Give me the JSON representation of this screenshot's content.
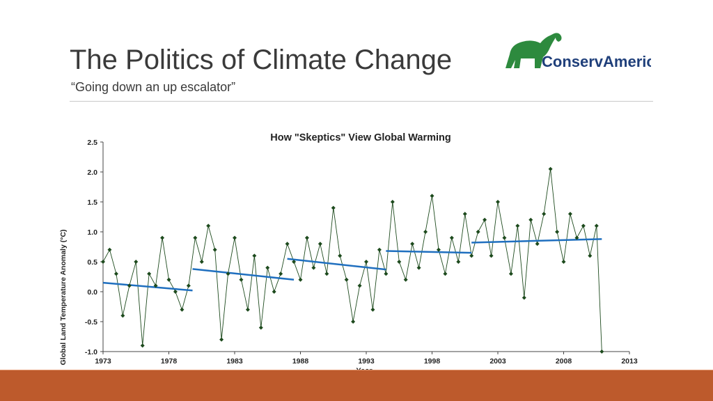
{
  "slide": {
    "title": "The Politics of Climate Change",
    "subtitle": "“Going down an up escalator”",
    "logo_text": "ConservAmerica"
  },
  "colors": {
    "accent_band": "#bd5a2c",
    "data_series": "#1d4a1d",
    "trend_lines": "#1f6fbf",
    "logo_green": "#2d8a3e",
    "logo_blue": "#1f3f7a"
  },
  "chart_data": {
    "type": "scatter",
    "title": "How \"Skeptics\" View Global Warming",
    "xlabel": "Year",
    "ylabel": "Global Land Temperature Anomaly (°C)",
    "xlim": [
      1973,
      2013
    ],
    "ylim": [
      -1.0,
      2.5
    ],
    "x_ticks": [
      "1973",
      "1978",
      "1983",
      "1988",
      "1993",
      "1998",
      "2003",
      "2008",
      "2013"
    ],
    "y_ticks": [
      "2.5",
      "2.0",
      "1.5",
      "1.0",
      "0.5",
      "0.0",
      "-0.5",
      "-1.0"
    ],
    "grid": false,
    "series": [
      {
        "points": [
          [
            1973.0,
            0.5
          ],
          [
            1973.5,
            0.7
          ],
          [
            1974.0,
            0.3
          ],
          [
            1974.5,
            -0.4
          ],
          [
            1975.0,
            0.1
          ],
          [
            1975.5,
            0.5
          ],
          [
            1976.0,
            -0.9
          ],
          [
            1976.5,
            0.3
          ],
          [
            1977.0,
            0.1
          ],
          [
            1977.5,
            0.9
          ],
          [
            1978.0,
            0.2
          ],
          [
            1978.5,
            0.0
          ],
          [
            1979.0,
            -0.3
          ],
          [
            1979.5,
            0.1
          ],
          [
            1980.0,
            0.9
          ],
          [
            1980.5,
            0.5
          ],
          [
            1981.0,
            1.1
          ],
          [
            1981.5,
            0.7
          ],
          [
            1982.0,
            -0.8
          ],
          [
            1982.5,
            0.3
          ],
          [
            1983.0,
            0.9
          ],
          [
            1983.5,
            0.2
          ],
          [
            1984.0,
            -0.3
          ],
          [
            1984.5,
            0.6
          ],
          [
            1985.0,
            -0.6
          ],
          [
            1985.5,
            0.4
          ],
          [
            1986.0,
            0.0
          ],
          [
            1986.5,
            0.3
          ],
          [
            1987.0,
            0.8
          ],
          [
            1987.5,
            0.5
          ],
          [
            1988.0,
            0.2
          ],
          [
            1988.5,
            0.9
          ],
          [
            1989.0,
            0.4
          ],
          [
            1989.5,
            0.8
          ],
          [
            1990.0,
            0.3
          ],
          [
            1990.5,
            1.4
          ],
          [
            1991.0,
            0.6
          ],
          [
            1991.5,
            0.2
          ],
          [
            1992.0,
            -0.5
          ],
          [
            1992.5,
            0.1
          ],
          [
            1993.0,
            0.5
          ],
          [
            1993.5,
            -0.3
          ],
          [
            1994.0,
            0.7
          ],
          [
            1994.5,
            0.3
          ],
          [
            1995.0,
            1.5
          ],
          [
            1995.5,
            0.5
          ],
          [
            1996.0,
            0.2
          ],
          [
            1996.5,
            0.8
          ],
          [
            1997.0,
            0.4
          ],
          [
            1997.5,
            1.0
          ],
          [
            1998.0,
            1.6
          ],
          [
            1998.5,
            0.7
          ],
          [
            1999.0,
            0.3
          ],
          [
            1999.5,
            0.9
          ],
          [
            2000.0,
            0.5
          ],
          [
            2000.5,
            1.3
          ],
          [
            2001.0,
            0.6
          ],
          [
            2001.5,
            1.0
          ],
          [
            2002.0,
            1.2
          ],
          [
            2002.5,
            0.6
          ],
          [
            2003.0,
            1.5
          ],
          [
            2003.5,
            0.9
          ],
          [
            2004.0,
            0.3
          ],
          [
            2004.5,
            1.1
          ],
          [
            2005.0,
            -0.1
          ],
          [
            2005.5,
            1.2
          ],
          [
            2006.0,
            0.8
          ],
          [
            2006.5,
            1.3
          ],
          [
            2007.0,
            2.05
          ],
          [
            2007.5,
            1.0
          ],
          [
            2008.0,
            0.5
          ],
          [
            2008.5,
            1.3
          ],
          [
            2009.0,
            0.9
          ],
          [
            2009.5,
            1.1
          ],
          [
            2010.0,
            0.6
          ],
          [
            2010.5,
            1.1
          ],
          [
            2010.9,
            -1.0
          ]
        ]
      }
    ],
    "trend_segments": [
      {
        "x": [
          1973,
          1979.8
        ],
        "y": [
          0.15,
          0.02
        ]
      },
      {
        "x": [
          1979.8,
          1987.5
        ],
        "y": [
          0.38,
          0.2
        ]
      },
      {
        "x": [
          1987.0,
          1994.5
        ],
        "y": [
          0.55,
          0.37
        ]
      },
      {
        "x": [
          1994.5,
          2001.0
        ],
        "y": [
          0.68,
          0.65
        ]
      },
      {
        "x": [
          2001.0,
          2010.9
        ],
        "y": [
          0.82,
          0.88
        ]
      }
    ]
  }
}
